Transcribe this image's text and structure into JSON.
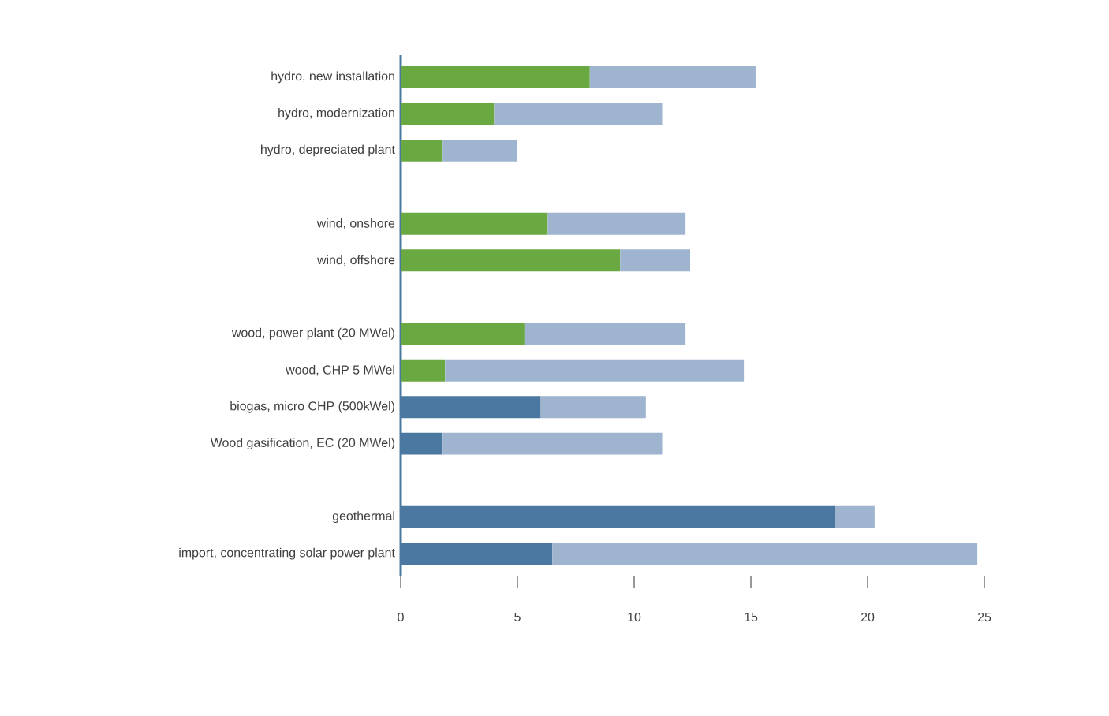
{
  "chart_data": {
    "type": "bar",
    "orientation": "horizontal",
    "stacked": true,
    "grid": false,
    "categories": [
      "hydro, new installation",
      "hydro, modernization",
      "hydro, depreciated plant",
      null,
      "wind, onshore",
      "wind, offshore",
      null,
      "wood, power plant (20 MWel)",
      "wood, CHP 5 MWel",
      "biogas, micro CHP (500kWel)",
      "Wood gasification, EC (20 MWel)",
      null,
      "geothermal",
      "import, concentrating solar power plant"
    ],
    "series": [
      {
        "colors": [
          "#6aa842",
          "#6aa842",
          "#6aa842",
          null,
          "#6aa842",
          "#6aa842",
          null,
          "#6aa842",
          "#6aa842",
          "#4a78a0",
          "#4a78a0",
          null,
          "#4a78a0",
          "#4a78a0"
        ],
        "values": [
          8.1,
          4.0,
          1.8,
          null,
          6.3,
          9.4,
          null,
          5.3,
          1.9,
          6.0,
          1.8,
          null,
          18.6,
          6.5
        ]
      },
      {
        "color": "#9fb4cf",
        "values": [
          7.1,
          7.2,
          3.2,
          null,
          5.9,
          3.0,
          null,
          6.9,
          12.8,
          4.5,
          9.4,
          null,
          1.7,
          18.2
        ]
      }
    ],
    "xlim": [
      0,
      25
    ],
    "xticks": [
      0,
      5,
      10,
      15,
      20,
      25
    ]
  }
}
